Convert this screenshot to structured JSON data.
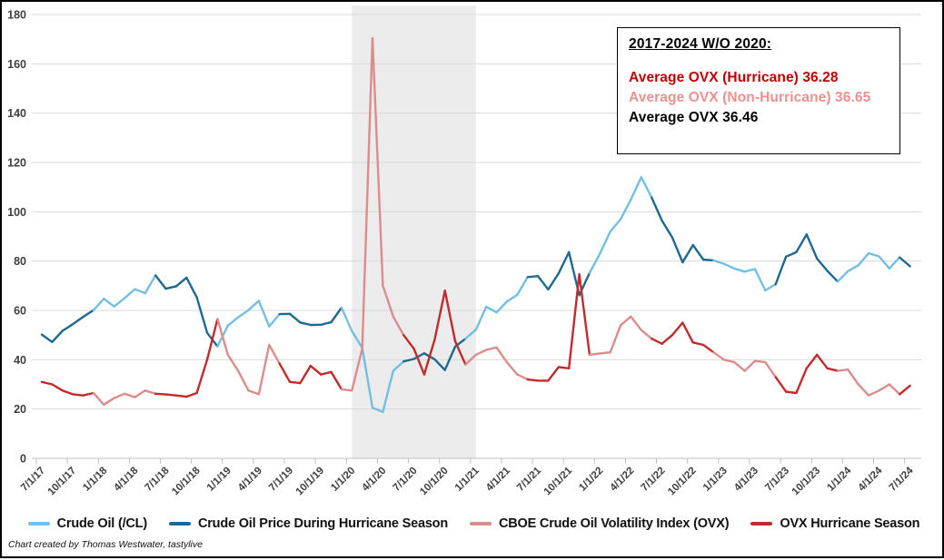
{
  "title_box": {
    "title": "2017-2024 W/O 2020:",
    "lines": [
      {
        "text": "Average OVX (Hurricane) 36.28",
        "color": "#C00000"
      },
      {
        "text": "Average OVX (Non-Hurricane) 36.65",
        "color": "#EE9090"
      },
      {
        "text": "Average OVX 36.46",
        "color": "#000000"
      }
    ]
  },
  "attribution": "Chart created by Thomas Westwater, tastylive",
  "legend": [
    {
      "label": "Crude Oil (/CL)",
      "color": "#73BFE3"
    },
    {
      "label": "Crude Oil Price During Hurricane Season",
      "color": "#1E6A8E"
    },
    {
      "label": "CBOE Crude Oil Volatility Index (OVX)",
      "color": "#DD8C8C"
    },
    {
      "label": "OVX Hurricane Season",
      "color": "#C22B2B"
    }
  ],
  "chart_data": {
    "type": "line",
    "start_month": "2017-07",
    "frequency": "monthly",
    "hurricane_season_months": "June-November (dark colored segments)",
    "ylim": [
      0,
      180
    ],
    "y_ticks": [
      0,
      20,
      40,
      60,
      80,
      100,
      120,
      140,
      160,
      180
    ],
    "x_tick_labels": [
      "7/1/17",
      "10/1/17",
      "1/1/18",
      "4/1/18",
      "7/1/18",
      "10/1/18",
      "1/1/19",
      "4/1/19",
      "7/1/19",
      "10/1/19",
      "1/1/20",
      "4/1/20",
      "7/1/20",
      "10/1/20",
      "1/1/21",
      "4/1/21",
      "7/1/21",
      "10/1/21",
      "1/1/22",
      "4/1/22",
      "7/1/22",
      "10/1/22",
      "1/1/23",
      "4/1/23",
      "7/1/23",
      "10/1/23",
      "1/1/24",
      "4/1/24",
      "7/1/24"
    ],
    "shaded_region": {
      "from": "1/1/20",
      "to": "1/1/21",
      "color": "#ECECEC"
    },
    "grid_color": "#D9D9D9",
    "axis_label_color": "#404040",
    "series": [
      {
        "name": "Crude Oil (/CL)",
        "color_non_hurricane": "#73BFE3",
        "color_hurricane": "#1E6A8E",
        "values": [
          50.2,
          47.2,
          51.7,
          54.4,
          57.4,
          60.1,
          64.7,
          61.6,
          64.9,
          68.6,
          67.0,
          74.2,
          68.8,
          69.8,
          73.3,
          65.3,
          50.9,
          45.4,
          53.8,
          57.2,
          60.1,
          63.9,
          53.5,
          58.5,
          58.6,
          55.1,
          54.1,
          54.2,
          55.2,
          61.1,
          51.6,
          44.8,
          20.5,
          18.8,
          35.5,
          39.3,
          40.3,
          42.6,
          40.2,
          35.8,
          45.3,
          48.5,
          52.2,
          61.5,
          59.2,
          63.6,
          66.3,
          73.5,
          73.9,
          68.5,
          75.0,
          83.6,
          66.2,
          75.2,
          83.0,
          92.0,
          97.0,
          105.0,
          114.0,
          105.8,
          96.4,
          89.6,
          79.5,
          86.5,
          80.6,
          80.3,
          78.9,
          77.0,
          75.7,
          76.8,
          68.1,
          70.6,
          81.8,
          83.6,
          90.8,
          81.0,
          76.0,
          71.7,
          75.9,
          78.3,
          83.2,
          81.9,
          77.0,
          81.5,
          77.9
        ]
      },
      {
        "name": "CBOE Crude Oil Volatility Index (OVX)",
        "color_non_hurricane": "#DD8C8C",
        "color_hurricane": "#C22B2B",
        "values": [
          31.0,
          30.0,
          27.5,
          26.0,
          25.5,
          26.5,
          21.8,
          24.4,
          26.2,
          24.8,
          27.5,
          26.2,
          25.9,
          25.5,
          25.0,
          26.5,
          40.0,
          56.5,
          42.0,
          35.5,
          27.5,
          26.0,
          46.0,
          38.5,
          31.0,
          30.5,
          37.5,
          34.0,
          35.0,
          28.0,
          27.5,
          44.5,
          170.4,
          70.0,
          57.5,
          50.0,
          44.5,
          34.0,
          48.0,
          68.0,
          47.5,
          38.0,
          42.0,
          44.0,
          45.0,
          39.0,
          34.0,
          32.0,
          31.5,
          31.5,
          37.0,
          36.5,
          74.7,
          42.0,
          42.5,
          43.0,
          54.0,
          57.5,
          52.0,
          48.5,
          46.5,
          50.0,
          55.0,
          47.0,
          46.0,
          43.0,
          40.0,
          39.0,
          35.5,
          39.5,
          39.0,
          33.0,
          27.0,
          26.5,
          36.5,
          42.0,
          36.5,
          35.5,
          36.0,
          30.0,
          25.5,
          27.5,
          30.0,
          26.0,
          29.5
        ]
      }
    ]
  }
}
